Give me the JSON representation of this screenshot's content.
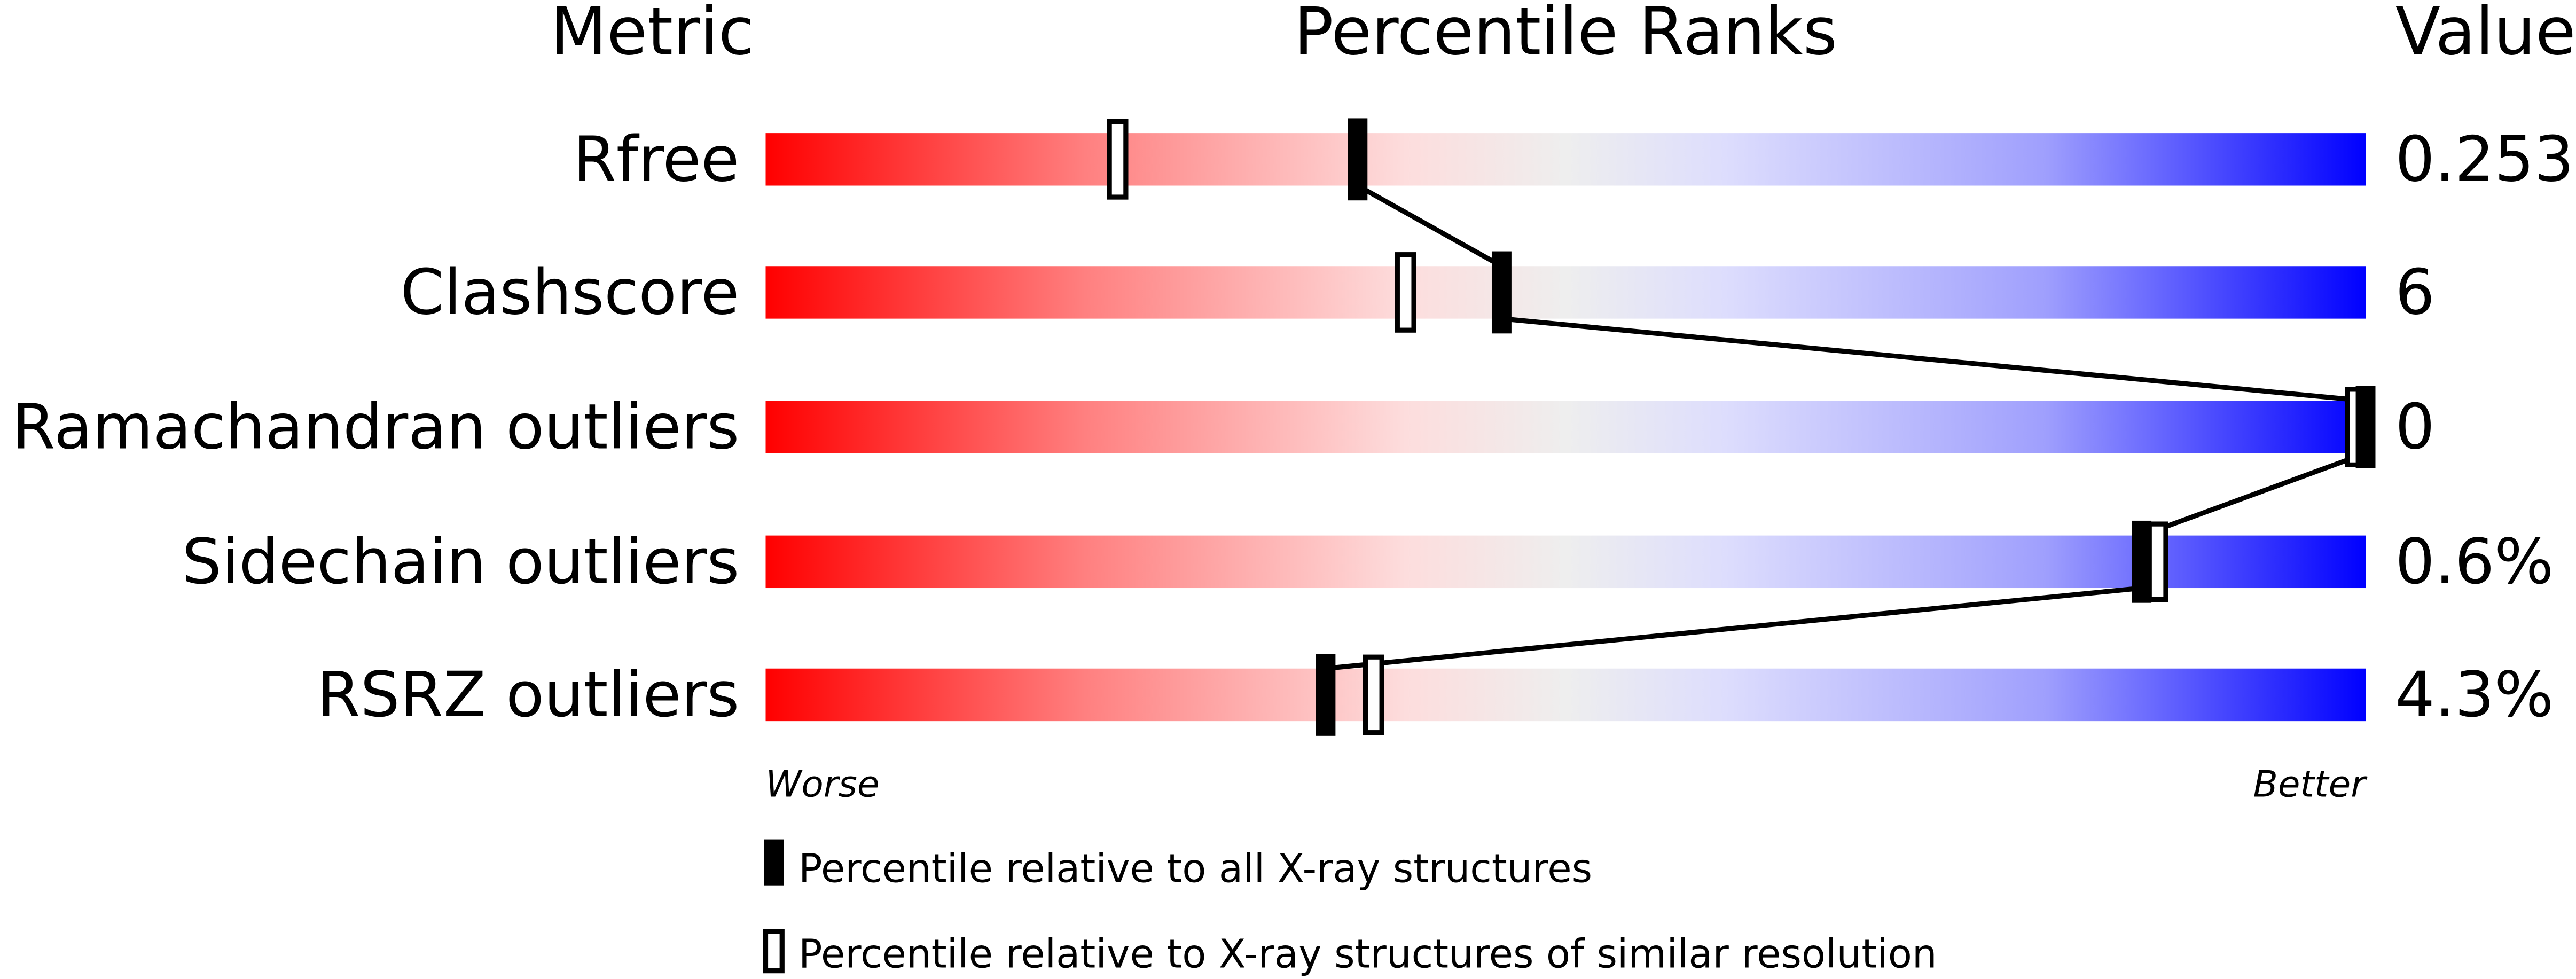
{
  "chart_data": {
    "type": "percentile-slider",
    "headers": {
      "metric": "Metric",
      "percentile": "Percentile Ranks",
      "value": "Value"
    },
    "metrics": [
      {
        "label": "Rfree",
        "value": "0.253",
        "percentile_all": 37,
        "percentile_similar": 22
      },
      {
        "label": "Clashscore",
        "value": "6",
        "percentile_all": 46,
        "percentile_similar": 40
      },
      {
        "label": "Ramachandran outliers",
        "value": "0",
        "percentile_all": 100,
        "percentile_similar": 100
      },
      {
        "label": "Sidechain outliers",
        "value": "0.6%",
        "percentile_all": 86,
        "percentile_similar": 87
      },
      {
        "label": "RSRZ outliers",
        "value": "4.3%",
        "percentile_all": 35,
        "percentile_similar": 38
      }
    ],
    "axis": {
      "worse": "Worse",
      "better": "Better",
      "range": [
        0,
        100
      ]
    },
    "legend": {
      "all": "Percentile relative to all X-ray structures",
      "similar": "Percentile relative to X-ray structures of similar resolution"
    },
    "colors": {
      "worse": "#ff0000",
      "middle": "#eeeeee",
      "better": "#0000ff",
      "marker": "#000000"
    }
  }
}
